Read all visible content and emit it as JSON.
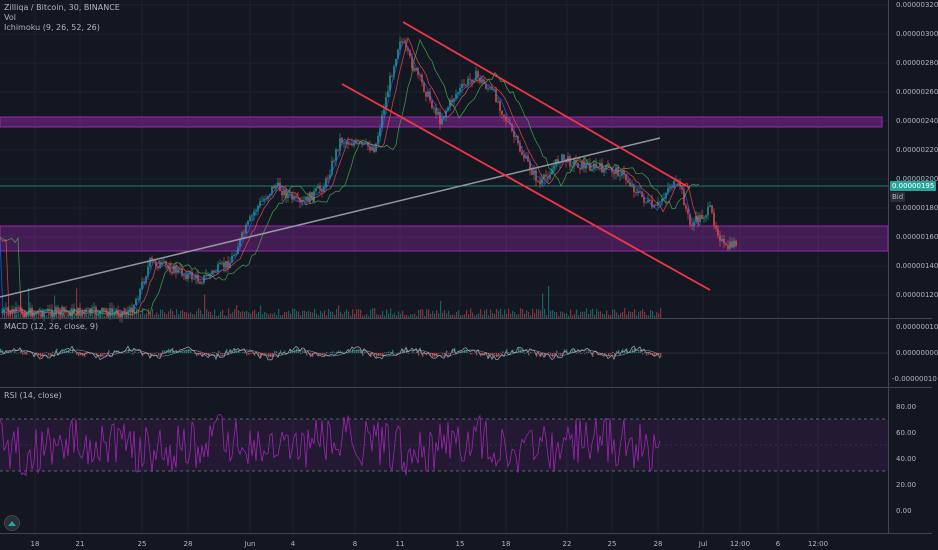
{
  "header": {
    "title": "Zilliqa / Bitcoin, 30, BINANCE",
    "vol_label": "Vol",
    "ichimoku_label": "Ichimoku (9, 26, 52, 26)"
  },
  "price_axis": {
    "labels": [
      "0.00000320",
      "0.00000300",
      "0.00000280",
      "0.00000260",
      "0.00000240",
      "0.00000220",
      "0.00000200",
      "0.00000180",
      "0.00000160",
      "0.00000140",
      "0.00000120"
    ],
    "current_value": "0.00000195",
    "current_bid": "Bid"
  },
  "macd": {
    "label": "MACD (12, 26, close, 9)",
    "labels": [
      "0.00000010",
      "0.00000000",
      "-0.00000010"
    ]
  },
  "rsi": {
    "label": "RSI (14, close)",
    "labels": [
      "80.00",
      "60.00",
      "40.00",
      "20.00",
      "0.00"
    ]
  },
  "time_axis": {
    "labels": [
      "18",
      "21",
      "25",
      "28",
      "Jun",
      "4",
      "8",
      "11",
      "15",
      "18",
      "22",
      "25",
      "28",
      "Jul",
      "12:00",
      "6",
      "12:00"
    ]
  },
  "colors": {
    "background": "#131722",
    "up": "#26a69a",
    "down": "#ef5350",
    "trend_red": "#f23645",
    "trend_gray": "#9598a1",
    "zone_purple": "#9c27b0",
    "rsi_line": "#9c27b0",
    "price_tag": "#26a69a"
  },
  "icons": {
    "logo": "tradingview-logo-icon"
  }
}
